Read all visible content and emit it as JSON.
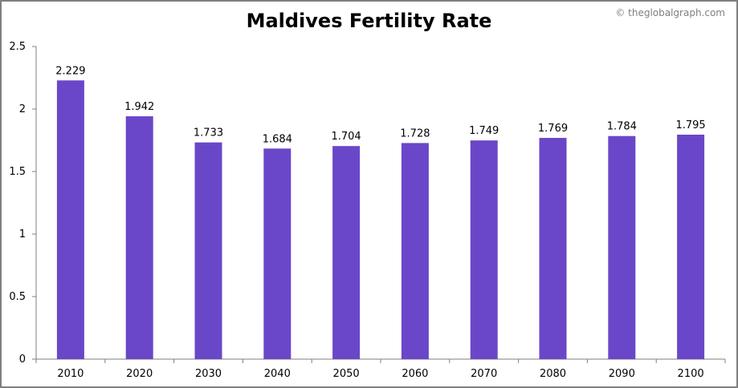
{
  "watermark": "© theglobalgraph.com",
  "colors": {
    "bar": "#6A47C8",
    "axis": "#7f7f7f",
    "frame": "#7f7f7f"
  },
  "chart_data": {
    "type": "bar",
    "title": "Maldives Fertility Rate",
    "xlabel": "",
    "ylabel": "",
    "categories": [
      "2010",
      "2020",
      "2030",
      "2040",
      "2050",
      "2060",
      "2070",
      "2080",
      "2090",
      "2100"
    ],
    "values": [
      2.229,
      1.942,
      1.733,
      1.684,
      1.704,
      1.728,
      1.749,
      1.769,
      1.784,
      1.795
    ],
    "value_labels": [
      "2.229",
      "1.942",
      "1.733",
      "1.684",
      "1.704",
      "1.728",
      "1.749",
      "1.769",
      "1.784",
      "1.795"
    ],
    "ylim": [
      0,
      2.5
    ],
    "yticks": [
      0,
      0.5,
      1,
      1.5,
      2,
      2.5
    ],
    "ytick_labels": [
      "0",
      "0.5",
      "1",
      "1.5",
      "2",
      "2.5"
    ],
    "grid": false,
    "legend": "none"
  }
}
